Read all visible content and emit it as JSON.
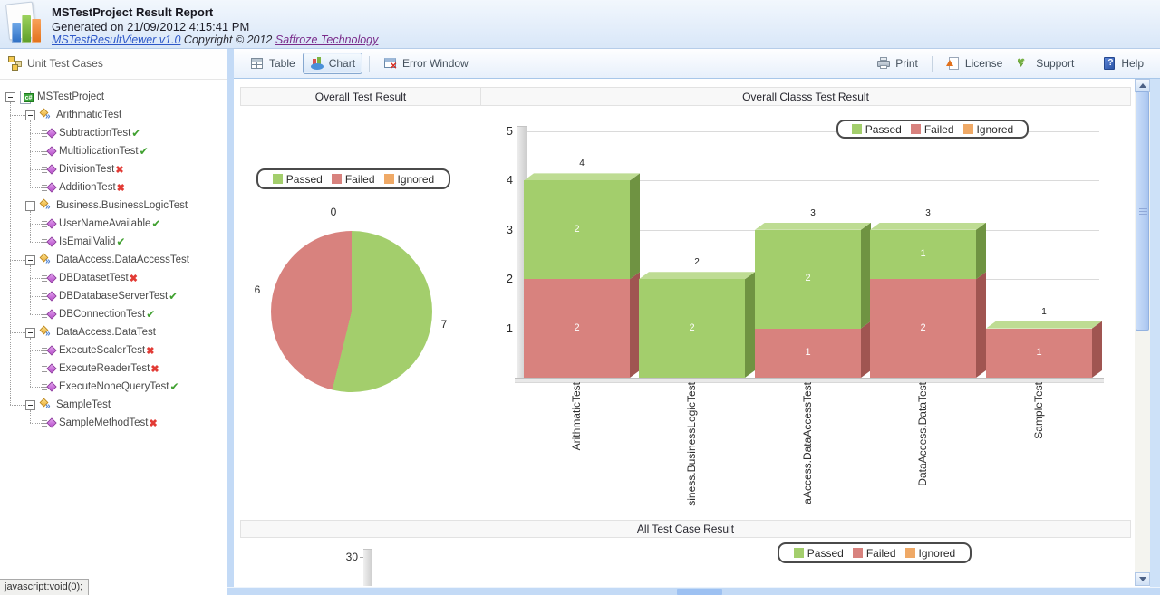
{
  "header": {
    "title": "MSTestProject Result Report",
    "subtitle": "Generated on 21/09/2012 4:15:41 PM",
    "app_link": "MSTestResultViewer v1.0",
    "copyright_text": "Copyright © 2012",
    "company_link": "Saffroze Technology"
  },
  "sidebar": {
    "title": "Unit Test Cases",
    "tree": [
      {
        "label": "MSTestProject",
        "level": 0,
        "type": "project",
        "status": "none"
      },
      {
        "label": "ArithmaticTest",
        "level": 1,
        "type": "class",
        "status": "none"
      },
      {
        "label": "SubtractionTest",
        "level": 2,
        "type": "test",
        "status": "pass"
      },
      {
        "label": "MultiplicationTest",
        "level": 2,
        "type": "test",
        "status": "pass"
      },
      {
        "label": "DivisionTest",
        "level": 2,
        "type": "test",
        "status": "fail"
      },
      {
        "label": "AdditionTest",
        "level": 2,
        "type": "test",
        "status": "fail"
      },
      {
        "label": "Business.BusinessLogicTest",
        "level": 1,
        "type": "class",
        "status": "none"
      },
      {
        "label": "UserNameAvailable",
        "level": 2,
        "type": "test",
        "status": "pass"
      },
      {
        "label": "IsEmailValid",
        "level": 2,
        "type": "test",
        "status": "pass"
      },
      {
        "label": "DataAccess.DataAccessTest",
        "level": 1,
        "type": "class",
        "status": "none"
      },
      {
        "label": "DBDatasetTest",
        "level": 2,
        "type": "test",
        "status": "fail"
      },
      {
        "label": "DBDatabaseServerTest",
        "level": 2,
        "type": "test",
        "status": "pass"
      },
      {
        "label": "DBConnectionTest",
        "level": 2,
        "type": "test",
        "status": "pass"
      },
      {
        "label": "DataAccess.DataTest",
        "level": 1,
        "type": "class",
        "status": "none"
      },
      {
        "label": "ExecuteScalerTest",
        "level": 2,
        "type": "test",
        "status": "fail"
      },
      {
        "label": "ExecuteReaderTest",
        "level": 2,
        "type": "test",
        "status": "fail"
      },
      {
        "label": "ExecuteNoneQueryTest",
        "level": 2,
        "type": "test",
        "status": "pass"
      },
      {
        "label": "SampleTest",
        "level": 1,
        "type": "class",
        "status": "none"
      },
      {
        "label": "SampleMethodTest",
        "level": 2,
        "type": "test",
        "status": "fail"
      }
    ]
  },
  "toolbar": {
    "table": "Table",
    "chart": "Chart",
    "error_window": "Error Window",
    "print": "Print",
    "license": "License",
    "support": "Support",
    "help": "Help"
  },
  "sections": {
    "overall": "Overall Test Result",
    "overall_class": "Overall Classs Test Result",
    "all_cases": "All Test Case Result"
  },
  "legend": {
    "passed": "Passed",
    "failed": "Failed",
    "ignored": "Ignored"
  },
  "colors": {
    "passed": "#A3CE6C",
    "passed_side": "#6F9342",
    "passed_top": "#BEDC93",
    "failed": "#D8827E",
    "failed_side": "#A05551",
    "ignored": "#EFA966",
    "link_blue": "#2E58C8",
    "link_purple": "#7B2D8B"
  },
  "status_bar_text": "javascript:void(0);",
  "chart_data": [
    {
      "type": "pie",
      "title": "Overall Test Result",
      "labels": [
        "Passed",
        "Failed",
        "Ignored"
      ],
      "values": [
        7,
        6,
        0
      ],
      "colors": [
        "#A3CE6C",
        "#D8827E",
        "#EFA966"
      ],
      "legend_position": "top"
    },
    {
      "type": "bar",
      "stacked": true,
      "title": "Overall Classs Test Result",
      "categories": [
        "ArithmaticTest",
        "Business.BusinessLogicTest",
        "DataAccess.DataAccessTest",
        "DataAccess.DataTest",
        "SampleTest"
      ],
      "x_labels_displayed": [
        "ArithmaticTest",
        "siness.BusinessLogicTest",
        "aAccess.DataAccessTest",
        "DataAccess.DataTest",
        "SampleTest"
      ],
      "series": [
        {
          "name": "Passed",
          "values": [
            2,
            2,
            2,
            1,
            0
          ]
        },
        {
          "name": "Failed",
          "values": [
            2,
            0,
            1,
            2,
            1
          ]
        },
        {
          "name": "Ignored",
          "values": [
            0,
            0,
            0,
            0,
            0
          ]
        }
      ],
      "totals": [
        4,
        2,
        3,
        3,
        1
      ],
      "ylim": [
        0,
        5
      ],
      "yticks": [
        1,
        2,
        3,
        4,
        5
      ],
      "legend_position": "top-right"
    },
    {
      "type": "bar",
      "title": "All Test Case Result",
      "visible_ytick": "30",
      "note": "chart partially scrolled out of view",
      "legend_position": "top-right"
    }
  ]
}
